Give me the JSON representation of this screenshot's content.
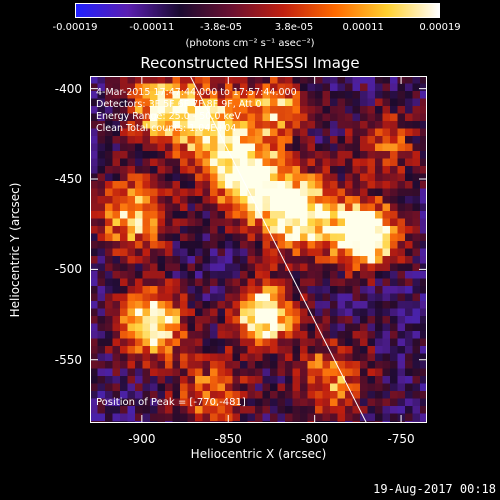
{
  "chart_data": {
    "type": "heatmap",
    "title": "Reconstructed RHESSI Image",
    "xlabel": "Heliocentric X (arcsec)",
    "ylabel": "Heliocentric Y (arcsec)",
    "xlim": [
      -930,
      -735
    ],
    "ylim": [
      -585,
      -393
    ],
    "xticks": [
      -900,
      -850,
      -800,
      -750
    ],
    "yticks": [
      -400,
      -450,
      -500,
      -550
    ],
    "xtick_labels": [
      "-900",
      "-850",
      "-800",
      "-750"
    ],
    "ytick_labels": [
      "-400",
      "-450",
      "-500",
      "-550"
    ],
    "colorbar": {
      "ticks": [
        -0.00019,
        -0.00011,
        -3.8e-05,
        3.8e-05,
        0.00011,
        0.00019
      ],
      "tick_labels": [
        "-0.00019",
        "-0.00011",
        "-3.8e-05",
        "3.8e-05",
        "0.00011",
        "0.00019"
      ],
      "units_label": "(photons cm⁻² s⁻¹ asec⁻²)",
      "colors": [
        "#2020ff",
        "#5a1fb0",
        "#1a0a30",
        "#6a1030",
        "#c02010",
        "#ff6a00",
        "#ffd030",
        "#ffffff"
      ]
    },
    "limb_line": {
      "x": [
        -872,
        -770
      ],
      "y": [
        -393,
        -585
      ]
    },
    "peak_position": [
      -770,
      -481
    ]
  },
  "annotations": {
    "time_range": "4-Mar-2015 17:47:44.000 to 17:57:44.000",
    "detectors": "Detectors: 3F 5F 6F 7F 8F 9F, Att 0",
    "energy_range": "Energy Range: 25.0 - 50.0 keV",
    "algorithm": "Clean     Total counts: 1.04E+04",
    "peak": "Position of Peak = [-770,-481]"
  },
  "timestamp": "19-Aug-2017 00:18"
}
